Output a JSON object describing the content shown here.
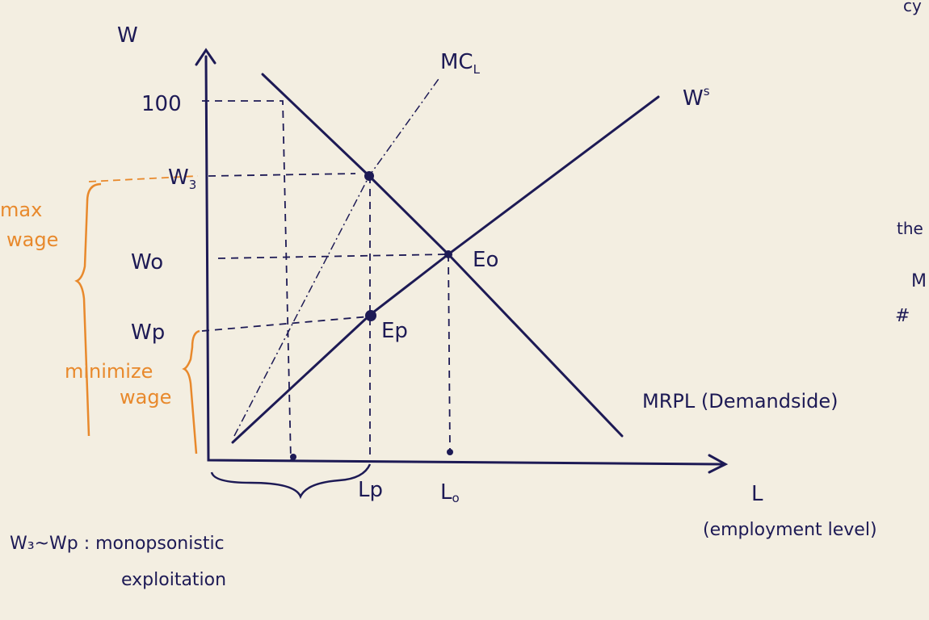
{
  "axes": {
    "y_label": "W",
    "x_label": "L",
    "x_note": "(employment level)"
  },
  "y_ticks": [
    {
      "text": "100"
    },
    {
      "text": "W",
      "sub": "3"
    },
    {
      "text": "W",
      "sub": "o"
    },
    {
      "text": "Wp"
    }
  ],
  "x_ticks": [
    {
      "text": "Lp"
    },
    {
      "text": "L",
      "sub": "o"
    }
  ],
  "curves": {
    "mc": {
      "text": "MC",
      "sub": "L"
    },
    "supply": {
      "text": "W",
      "sup": "s"
    },
    "demand": {
      "text": "MRPL (Demandside)"
    }
  },
  "points": [
    {
      "text": "E",
      "sub": "o"
    },
    {
      "text": "Ep"
    }
  ],
  "annotations": {
    "max_wage": [
      "max",
      "wage"
    ],
    "min_wage": [
      "minimize",
      "wage"
    ],
    "exploitation": [
      "W₃~Wp : monopsonistic",
      "exploitation"
    ]
  },
  "edge_fragments": [
    "cy",
    "the",
    "M",
    "#"
  ]
}
